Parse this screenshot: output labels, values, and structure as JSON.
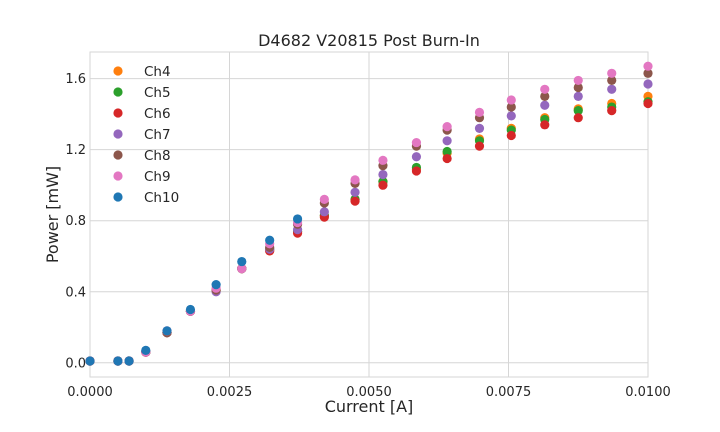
{
  "chart_data": {
    "type": "scatter",
    "title": "D4682 V20815 Post Burn-In",
    "xlabel": "Current [A]",
    "ylabel": "Power [mW]",
    "xlim": [
      0,
      0.01
    ],
    "ylim": [
      -0.08,
      1.75
    ],
    "xticks": [
      0,
      0.0025,
      0.005,
      0.0075,
      0.01
    ],
    "xtick_labels": [
      "0.0000",
      "0.0025",
      "0.0050",
      "0.0075",
      "0.0100"
    ],
    "yticks": [
      0,
      0.4,
      0.8,
      1.2,
      1.6
    ],
    "ytick_labels": [
      "0.0",
      "0.4",
      "0.8",
      "1.2",
      "1.6"
    ],
    "grid": true,
    "legend_position": "top-left",
    "x": [
      0,
      0.0005,
      0.0007,
      0.001,
      0.00138,
      0.0018,
      0.00226,
      0.00272,
      0.00322,
      0.00372,
      0.0042,
      0.00475,
      0.00525,
      0.00585,
      0.0064,
      0.00698,
      0.00755,
      0.00815,
      0.00875,
      0.00935,
      0.01
    ],
    "series": [
      {
        "name": "Ch4",
        "color": "#ff7f0e",
        "values": [
          0.01,
          0.01,
          0.01,
          0.06,
          0.17,
          0.29,
          0.41,
          0.53,
          0.63,
          0.74,
          0.83,
          0.92,
          1.02,
          1.09,
          1.18,
          1.26,
          1.32,
          1.38,
          1.43,
          1.46,
          1.5
        ]
      },
      {
        "name": "Ch5",
        "color": "#2ca02c",
        "values": [
          0.01,
          0.01,
          0.01,
          0.06,
          0.17,
          0.29,
          0.41,
          0.53,
          0.64,
          0.74,
          0.83,
          0.92,
          1.02,
          1.1,
          1.19,
          1.25,
          1.31,
          1.37,
          1.42,
          1.44,
          1.47
        ]
      },
      {
        "name": "Ch6",
        "color": "#d62728",
        "values": [
          0.01,
          0.01,
          0.01,
          0.06,
          0.17,
          0.29,
          0.41,
          0.53,
          0.63,
          0.73,
          0.82,
          0.91,
          1.0,
          1.08,
          1.15,
          1.22,
          1.28,
          1.34,
          1.38,
          1.42,
          1.46
        ]
      },
      {
        "name": "Ch7",
        "color": "#9467bd",
        "values": [
          0.01,
          0.01,
          0.01,
          0.06,
          0.17,
          0.29,
          0.4,
          0.53,
          0.64,
          0.75,
          0.85,
          0.96,
          1.06,
          1.16,
          1.25,
          1.32,
          1.39,
          1.45,
          1.5,
          1.54,
          1.57
        ]
      },
      {
        "name": "Ch8",
        "color": "#8c564b",
        "values": [
          0.01,
          0.01,
          0.01,
          0.06,
          0.17,
          0.29,
          0.41,
          0.53,
          0.65,
          0.78,
          0.9,
          1.01,
          1.11,
          1.22,
          1.31,
          1.38,
          1.44,
          1.5,
          1.55,
          1.59,
          1.63
        ]
      },
      {
        "name": "Ch9",
        "color": "#e377c2",
        "values": [
          0.01,
          0.01,
          0.01,
          0.06,
          0.18,
          0.29,
          0.42,
          0.53,
          0.67,
          0.79,
          0.92,
          1.03,
          1.14,
          1.24,
          1.33,
          1.41,
          1.48,
          1.54,
          1.59,
          1.63,
          1.67
        ]
      },
      {
        "name": "Ch10",
        "color": "#1f77b4",
        "values": [
          0.01,
          0.01,
          0.01,
          0.07,
          0.18,
          0.3,
          0.44,
          0.57,
          0.69,
          0.81
        ]
      }
    ]
  }
}
